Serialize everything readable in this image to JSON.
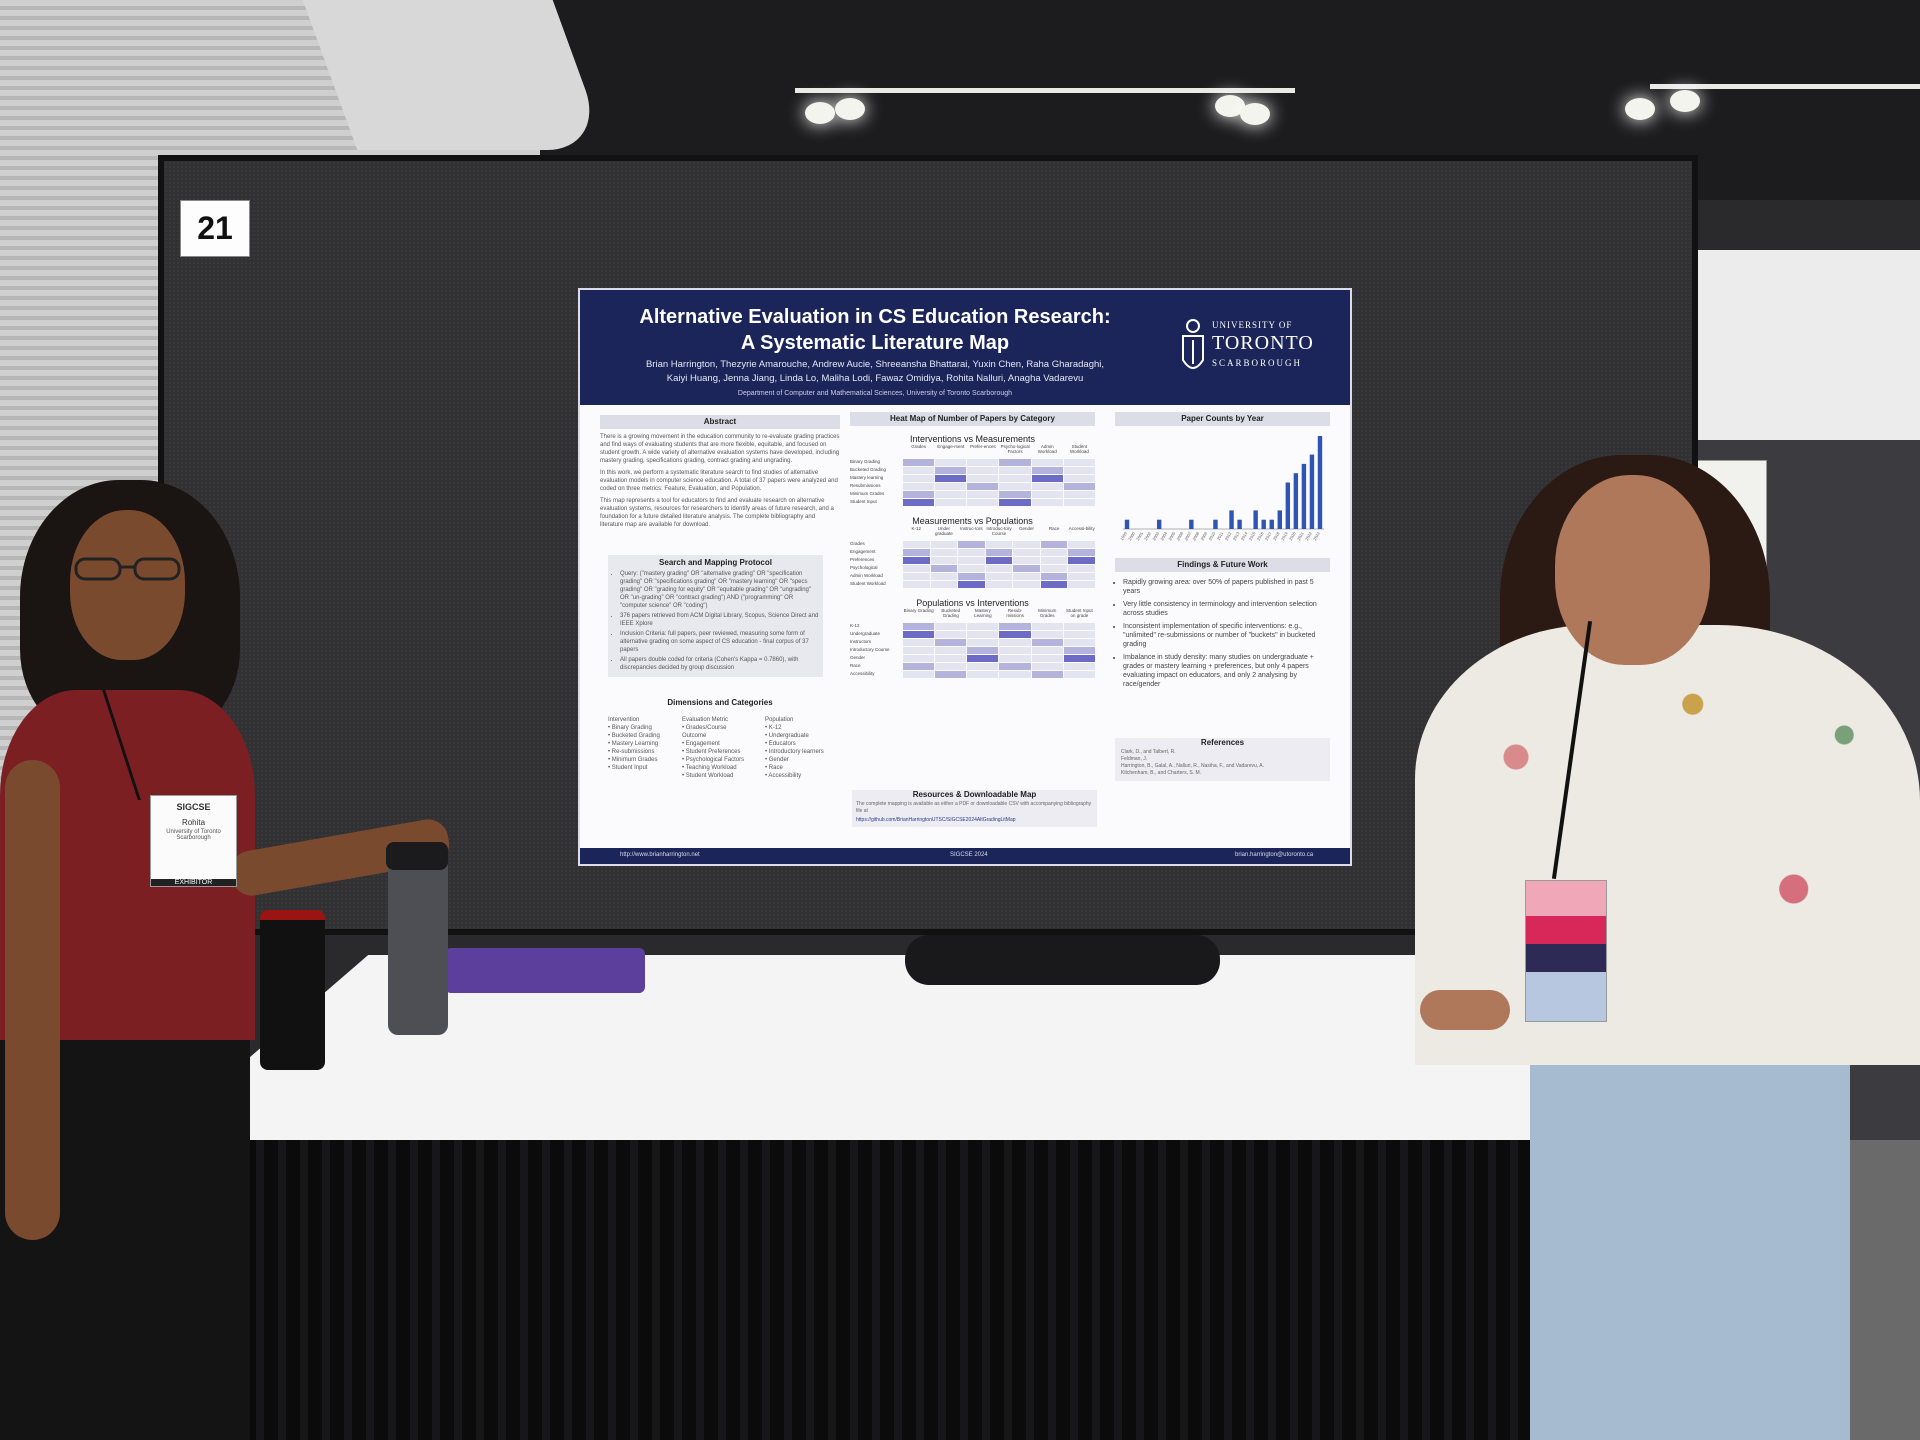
{
  "scene": {
    "board_number": "21"
  },
  "poster": {
    "title_line1": "Alternative Evaluation in CS Education Research:",
    "title_line2": "A Systematic Literature Map",
    "authors_line1": "Brian Harrington, Thezyrie Amarouche, Andrew Aucie, Shreeansha Bhattarai, Yuxin Chen, Raha Gharadaghi,",
    "authors_line2": "Kaiyi Huang, Jenna Jiang, Linda Lo, Maliha Lodi, Fawaz Omidiya, Rohita Nalluri, Anagha Vadarevu",
    "department": "Department of Computer and Mathematical Sciences, University of Toronto Scarborough",
    "logo": {
      "line1": "UNIVERSITY OF",
      "line2": "TORONTO",
      "line3": "SCARBOROUGH"
    },
    "abstract": {
      "heading": "Abstract",
      "p1": "There is a growing movement in the education community to re-evaluate grading practices and find ways of evaluating students that are more flexible, equitable, and focused on student growth. A wide variety of alternative evaluation systems have developed, including mastery grading, specifications grading, contract grading and ungrading.",
      "p2": "In this work, we perform a systematic literature search to find studies of alternative evaluation models in computer science education. A total of 37 papers were analyzed and coded on three metrics: Feature, Evaluation, and Population.",
      "p3": "This map represents a tool for educators to find and evaluate research on alternative evaluation systems, resources for researchers to identify areas of future research, and a foundation for a future detailed literature analysis. The complete bibliography and literature map are available for download."
    },
    "protocol": {
      "heading": "Search and Mapping Protocol",
      "items": [
        "Query: (\"mastery grading\" OR \"alternative grading\" OR \"specification grading\" OR \"specifications grading\" OR \"mastery learning\" OR \"specs grading\" OR \"grading for equity\" OR \"equitable grading\" OR \"ungrading\" OR \"un-grading\" OR \"contract grading\") AND (\"programming\" OR \"computer science\" OR \"coding\")",
        "376 papers retrieved from ACM Digital Library, Scopus, Science Direct and IEEE Xplore",
        "Inclusion Criteria: full papers, peer reviewed, measuring some form of alternative grading on some aspect of CS education - final corpus of 37 papers",
        "All papers double coded for criteria (Cohen's Kappa = 0.7860), with discrepancies decided by group discussion"
      ]
    },
    "dimensions": {
      "heading": "Dimensions and Categories",
      "intervention_heading": "Intervention",
      "interventions": [
        "Binary Grading",
        "Bucketed Grading",
        "Mastery Learning",
        "Re-submissions",
        "Minimum Grades",
        "Student Input"
      ],
      "evaluation_heading": "Evaluation Metric",
      "evaluations": [
        "Grades/Course Outcome",
        "Engagement",
        "Student Preferences",
        "Psychological Factors",
        "Teaching Workload",
        "Student Workload"
      ],
      "population_heading": "Population",
      "populations": [
        "K-12",
        "Undergraduate",
        "Educators",
        "Introductory learners",
        "Gender",
        "Race",
        "Accessibility"
      ]
    },
    "heatmap": {
      "heading": "Heat Map of Number of Papers by Category",
      "iv_m_title": "Interventions vs Measurements",
      "iv_m_cols": [
        "Grades",
        "Engage-ment",
        "Prefer-ences",
        "Psycho-logical Factors",
        "Admin Workload",
        "Student Workload"
      ],
      "iv_m_rows": [
        "Binary Grading",
        "Bucketed Grading",
        "Mastery learning",
        "Resubmissions",
        "Minimum Grades",
        "Student Input"
      ],
      "m_p_title": "Measurements vs Populations",
      "m_p_cols": [
        "K-12",
        "Under graduate",
        "Instruc-tors",
        "Introduc-tory Course",
        "Gender",
        "Race",
        "Accessi-bility"
      ],
      "m_p_rows": [
        "Grades",
        "Engagement",
        "Preferences",
        "Psychological",
        "Admin Workload",
        "Student Workload"
      ],
      "p_i_title": "Populations vs Interventions",
      "p_i_cols": [
        "Binary Grading",
        "Bucketed Grading",
        "Mastery Learning",
        "Resub-missions",
        "Minimum Grades",
        "Student Input on grade"
      ],
      "p_i_rows": [
        "K-12",
        "Undergraduate",
        "Instructors",
        "Introductory Course",
        "Gender",
        "Race",
        "Accessibility"
      ]
    },
    "resources": {
      "heading": "Resources & Downloadable Map",
      "text": "The complete mapping is available as either a PDF or downloadable CSV with accompanying bibliography file at",
      "url": "https://github.com/BrianHarringtonUTSC/SIGCSE2024AltGradingLitMap"
    },
    "paper_counts": {
      "heading": "Paper Counts by Year"
    },
    "findings": {
      "heading": "Findings & Future Work",
      "items": [
        "Rapidly growing area: over 50% of papers published in past 5 years",
        "Very little consistency in terminology and intervention selection across studies",
        "Inconsistent implementation of specific interventions: e.g., \"unlimited\" re-submissions or number of \"buckets\" in bucketed grading",
        "Imbalance in study density: many studies on undergraduate + grades or mastery learning + preferences, but only 4 papers evaluating impact on educators, and only 2 analysing by race/gender"
      ]
    },
    "references": {
      "heading": "References",
      "items": [
        "Clark, D., and Talbert, R.",
        "Feldman, J.",
        "Harrington, B., Galal, A., Nalluri, R., Nasiha, F., and Vadarevu, A.",
        "Kitchenham, B., and Charters, S. M."
      ]
    },
    "footer": {
      "left": "http://www.brianharrington.net",
      "center": "SIGCSE 2024",
      "right": "brian.harrington@utoronto.ca"
    }
  },
  "badge_left": {
    "conference": "SIGCSE",
    "name": "Rohita",
    "org": "University of Toronto Scarborough",
    "ribbon": "EXHIBITOR"
  },
  "chart_data": {
    "type": "bar",
    "title": "Paper Counts by Year",
    "categories": [
      "1999",
      "2000",
      "2001",
      "2002",
      "2003",
      "2004",
      "2005",
      "2006",
      "2007",
      "2008",
      "2009",
      "2010",
      "2011",
      "2012",
      "2013",
      "2014",
      "2015",
      "2016",
      "2017",
      "2018",
      "2019",
      "2020",
      "2021",
      "2022",
      "2023"
    ],
    "values": [
      1,
      0,
      0,
      0,
      1,
      0,
      0,
      0,
      1,
      0,
      0,
      1,
      0,
      2,
      1,
      0,
      2,
      1,
      1,
      2,
      5,
      6,
      7,
      8,
      10
    ],
    "xlabel": "",
    "ylabel": "",
    "ylim": [
      0,
      10
    ]
  },
  "colors": {
    "poster_navy": "#1c2559",
    "bar_blue": "#2f55b4",
    "heat_dark": "#6c6cc6",
    "heat_light": "#e4e4f0"
  }
}
